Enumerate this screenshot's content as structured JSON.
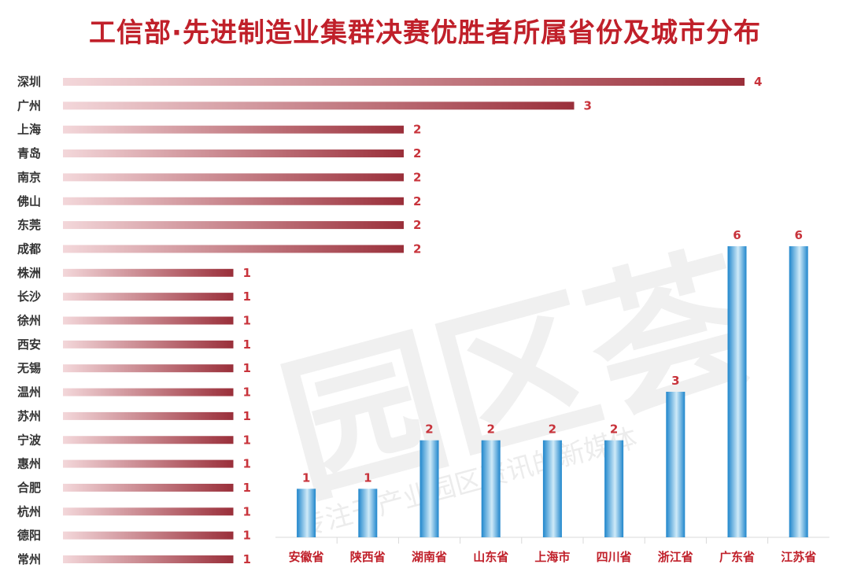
{
  "title": "工信部·先进制造业集群决赛优胜者所属省份及城市分布",
  "watermark": {
    "main": "园区荟",
    "sub": "专注于产业园区资讯的新媒体"
  },
  "colors": {
    "title": "#c0202a",
    "city_bar_dark": "#9a2f3a",
    "city_bar_light": "#f3d7da",
    "province_bar_dark": "#1f86cc",
    "province_bar_light": "#cfeaf8",
    "value_label": "#c8333b"
  },
  "chart_data": [
    {
      "type": "bar",
      "orientation": "horizontal",
      "categories": [
        "深圳",
        "广州",
        "上海",
        "青岛",
        "南京",
        "佛山",
        "东莞",
        "成都",
        "株洲",
        "长沙",
        "徐州",
        "西安",
        "无锡",
        "温州",
        "苏州",
        "宁波",
        "惠州",
        "合肥",
        "杭州",
        "德阳",
        "常州"
      ],
      "values": [
        4,
        3,
        2,
        2,
        2,
        2,
        2,
        2,
        1,
        1,
        1,
        1,
        1,
        1,
        1,
        1,
        1,
        1,
        1,
        1,
        1
      ],
      "data_labels": true,
      "xlim": [
        0,
        4
      ]
    },
    {
      "type": "bar",
      "orientation": "vertical",
      "categories": [
        "安徽省",
        "陕西省",
        "湖南省",
        "山东省",
        "上海市",
        "四川省",
        "浙江省",
        "广东省",
        "江苏省"
      ],
      "values": [
        1,
        1,
        2,
        2,
        2,
        2,
        3,
        6,
        6
      ],
      "data_labels": true,
      "ylim": [
        0,
        6
      ]
    }
  ]
}
